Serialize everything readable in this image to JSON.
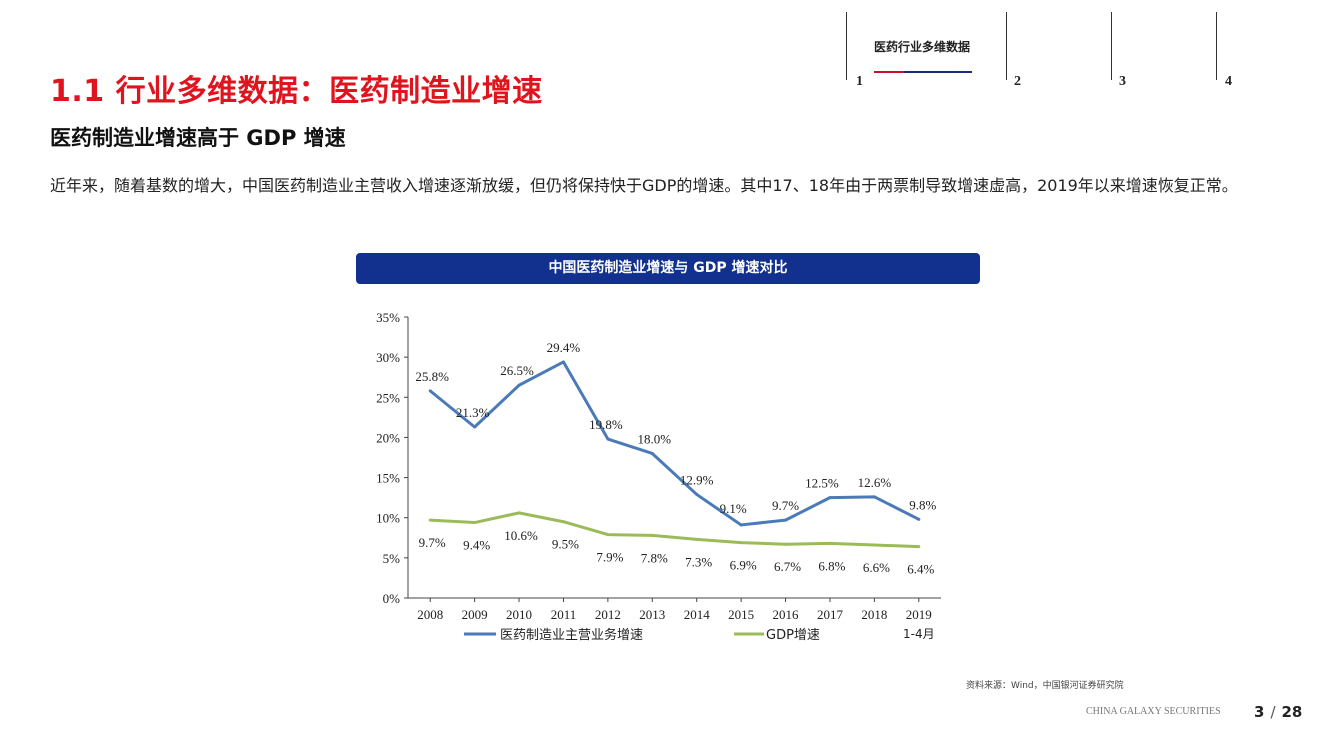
{
  "nav": {
    "active_section_title": "医药行业多维数据",
    "sections": [
      "1",
      "2",
      "3",
      "4"
    ]
  },
  "page": {
    "title": "1.1 行业多维数据：医药制造业增速",
    "subtitle": "医药制造业增速高于 GDP 增速",
    "body": "近年来，随着基数的增大，中国医药制造业主营收入增速逐渐放缓，但仍将保持快于GDP的增速。其中17、18年由于两票制导致增速虚高，2019年以来增速恢复正常。",
    "source": "资料来源：Wind，中国银河证券研究院",
    "brand": "CHINA GALAXY SECURITIES",
    "page_current": "3",
    "page_total": "28"
  },
  "chart_data": {
    "type": "line",
    "title": "中国医药制造业增速与 GDP 增速对比",
    "categories": [
      "2008",
      "2009",
      "2010",
      "2011",
      "2012",
      "2013",
      "2014",
      "2015",
      "2016",
      "2017",
      "2018",
      "2019"
    ],
    "category_sublabels": [
      "",
      "",
      "",
      "",
      "",
      "",
      "",
      "",
      "",
      "",
      "",
      "1-4月"
    ],
    "ylim": [
      0,
      35
    ],
    "yticks": [
      "0%",
      "5%",
      "10%",
      "15%",
      "20%",
      "25%",
      "30%",
      "35%"
    ],
    "series": [
      {
        "name": "医药制造业主营业务增速",
        "color": "#4a7ab8",
        "values": [
          25.8,
          21.3,
          26.5,
          29.4,
          19.8,
          18.0,
          12.9,
          9.1,
          9.7,
          12.5,
          12.6,
          9.8
        ],
        "labels": [
          "25.8%",
          "21.3%",
          "26.5%",
          "29.4%",
          "19.8%",
          "18.0%",
          "12.9%",
          "9.1%",
          "9.7%",
          "12.5%",
          "12.6%",
          "9.8%"
        ]
      },
      {
        "name": "GDP增速",
        "color": "#9bbb59",
        "values": [
          9.7,
          9.4,
          10.6,
          9.5,
          7.9,
          7.8,
          7.3,
          6.9,
          6.7,
          6.8,
          6.6,
          6.4
        ],
        "labels": [
          "9.7%",
          "9.4%",
          "10.6%",
          "9.5%",
          "7.9%",
          "7.8%",
          "7.3%",
          "6.9%",
          "6.7%",
          "6.8%",
          "6.6%",
          "6.4%"
        ]
      }
    ],
    "legend_position": "bottom"
  }
}
